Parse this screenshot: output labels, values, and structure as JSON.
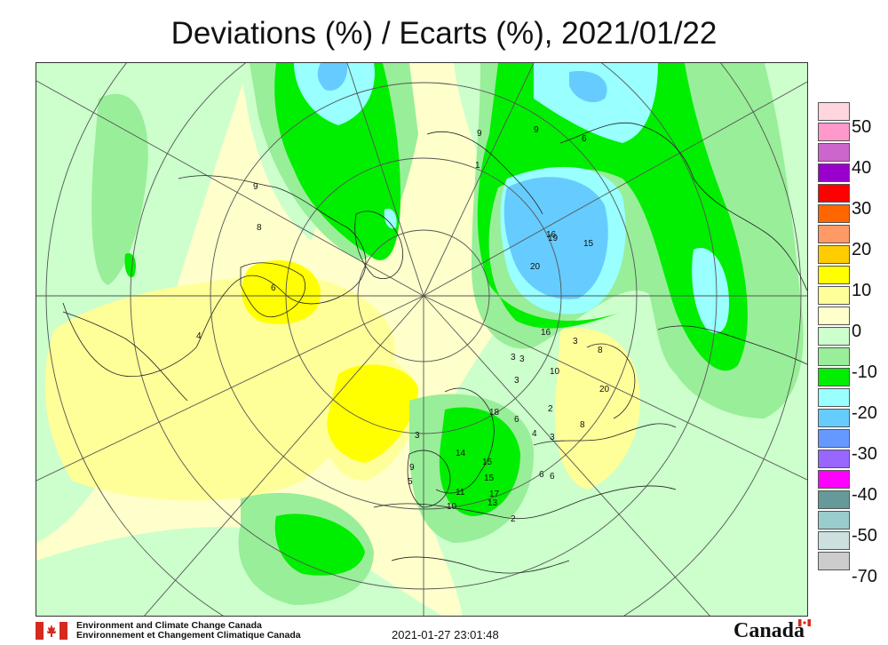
{
  "title": "Deviations (%) / Ecarts (%), 2021/01/22",
  "legend": {
    "levels": [
      {
        "label": "50",
        "color": "#ffd6de"
      },
      {
        "label": "",
        "color": "#ff99cc"
      },
      {
        "label": "40",
        "color": "#cc66cc"
      },
      {
        "label": "",
        "color": "#9900cc"
      },
      {
        "label": "30",
        "color": "#ff0000"
      },
      {
        "label": "",
        "color": "#ff6600"
      },
      {
        "label": "20",
        "color": "#ff9966"
      },
      {
        "label": "",
        "color": "#ffcc00"
      },
      {
        "label": "10",
        "color": "#ffff00"
      },
      {
        "label": "",
        "color": "#ffff99"
      },
      {
        "label": "0",
        "color": "#ffffcc"
      },
      {
        "label": "",
        "color": "#ccffcc"
      },
      {
        "label": "-10",
        "color": "#99ee99"
      },
      {
        "label": "",
        "color": "#00ee00"
      },
      {
        "label": "-20",
        "color": "#99ffff"
      },
      {
        "label": "",
        "color": "#66ccff"
      },
      {
        "label": "-30",
        "color": "#6699ff"
      },
      {
        "label": "",
        "color": "#9966ff"
      },
      {
        "label": "-40",
        "color": "#ff00ff"
      },
      {
        "label": "",
        "color": "#669999"
      },
      {
        "label": "-50",
        "color": "#99cccc"
      },
      {
        "label": "",
        "color": "#cce0dd"
      },
      {
        "label": "-70",
        "color": "#cccccc"
      }
    ]
  },
  "contour_labels": [
    "9",
    "8",
    "4",
    "6",
    "9",
    "6",
    "1",
    "9",
    "16",
    "15",
    "19",
    "20",
    "16",
    "3",
    "8",
    "20",
    "10",
    "3",
    "18",
    "6",
    "2",
    "3",
    "4",
    "8",
    "15",
    "14",
    "9",
    "11",
    "15",
    "17",
    "13",
    "5",
    "10",
    "3",
    "6",
    "2",
    "6",
    "3",
    "3"
  ],
  "footer": {
    "org_en": "Environment and Climate Change Canada",
    "org_fr": "Environnement et Changement Climatique Canada",
    "timestamp": "2021-01-27 23:01:48",
    "wordmark": "Canada"
  },
  "colors": {
    "map_base": "#ffffcc",
    "green_light": "#ccffcc",
    "green_mid": "#99ee99",
    "green_strong": "#00ee00",
    "cyan": "#99ffff",
    "blue": "#66ccff",
    "yellow": "#ffff99",
    "yellow_strong": "#ffff00",
    "flag_red": "#d52b1e"
  }
}
